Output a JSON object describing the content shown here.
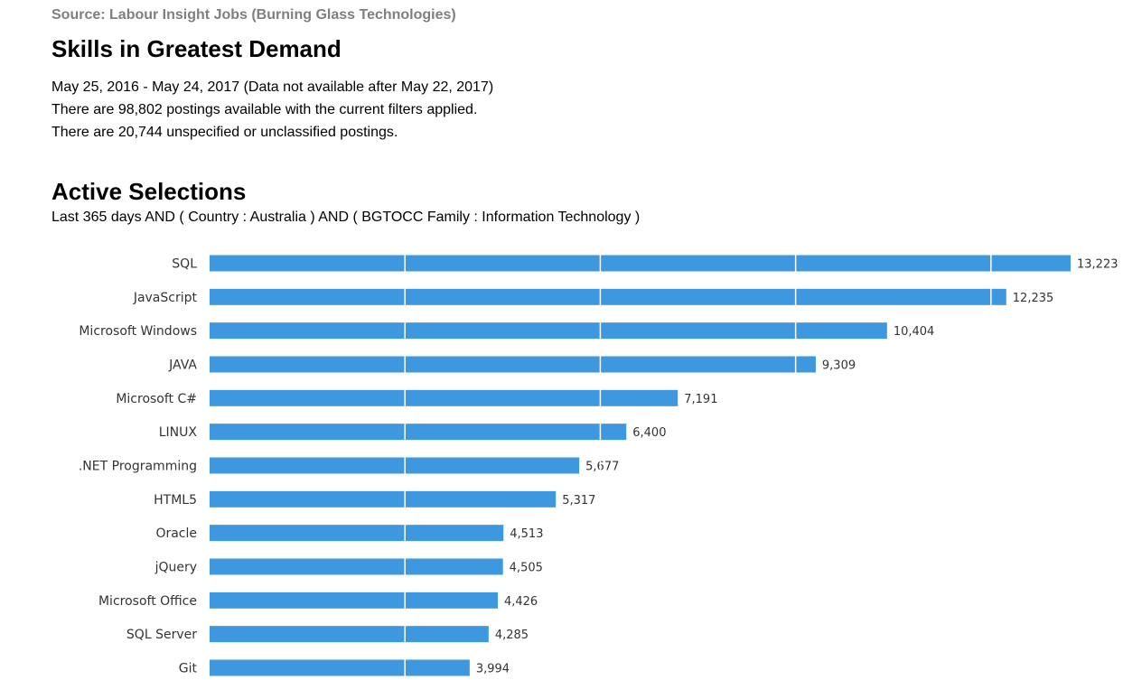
{
  "header": {
    "source": "Source: Labour Insight Jobs (Burning Glass Technologies)",
    "title": "Skills in Greatest Demand",
    "date_range": "May  25, 2016  - May  24, 2017  (Data not available after  May  22, 2017)",
    "postings_line": "There are 98,802 postings available with the current filters applied.",
    "unspecified_line": "There are 20,744 unspecified or unclassified postings."
  },
  "selections": {
    "title": "Active Selections",
    "filters": "Last 365 days AND ( Country : Australia ) AND ( BGTOCC Family : Information Technology )"
  },
  "chart_data": {
    "type": "bar",
    "orientation": "horizontal",
    "categories": [
      "SQL",
      "JavaScript",
      "Microsoft Windows",
      "JAVA",
      "Microsoft C#",
      "LINUX",
      ".NET Programming",
      "HTML5",
      "Oracle",
      "jQuery",
      "Microsoft Office",
      "SQL Server",
      "Git"
    ],
    "values": [
      13223,
      12235,
      10404,
      9309,
      7191,
      6400,
      5677,
      5317,
      4513,
      4505,
      4426,
      4285,
      3994
    ],
    "value_labels": [
      "13,223",
      "12,235",
      "10,404",
      "9,309",
      "7,191",
      "6,400",
      "5,677",
      "5,317",
      "4,513",
      "4,505",
      "4,426",
      "4,285",
      "3,994"
    ],
    "xlim": [
      0,
      13223
    ],
    "gridlines": [
      3000,
      6000,
      9000,
      12000
    ],
    "grid": true,
    "bar_color": "#3d98df",
    "title": "",
    "xlabel": "",
    "ylabel": ""
  }
}
